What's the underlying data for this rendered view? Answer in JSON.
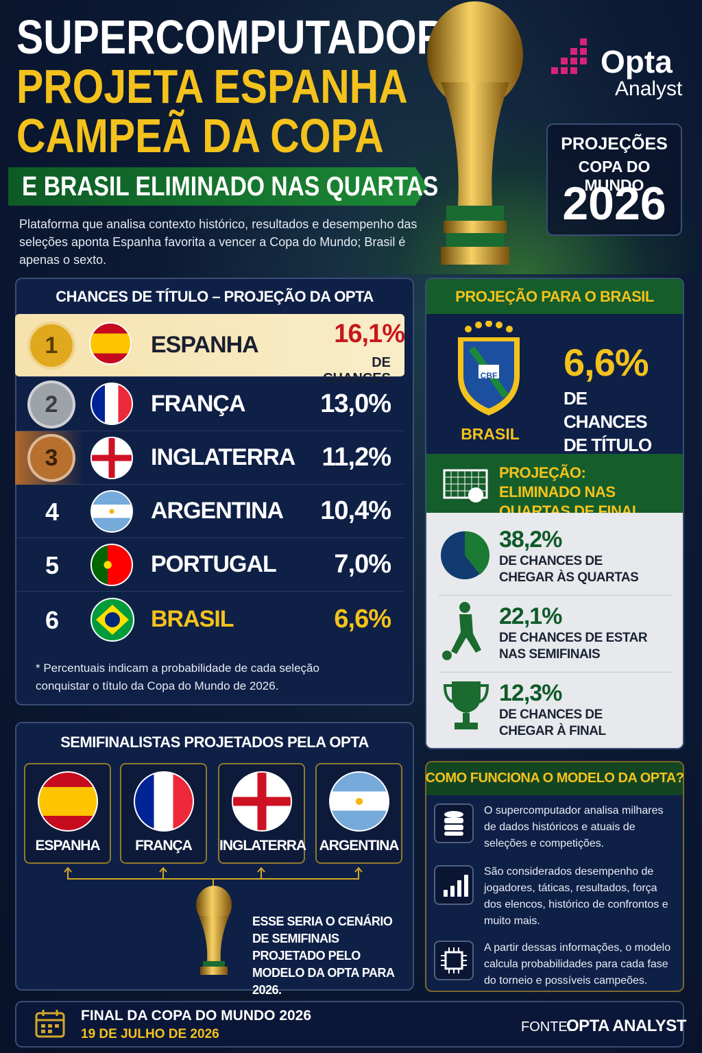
{
  "header": {
    "title_line1": "SUPERCOMPUTADOR",
    "title_line2": "PROJETA ESPANHA",
    "title_line3": "CAMPEÃ DA COPA",
    "banner": "E BRASIL ELIMINADO NAS QUARTAS",
    "intro": "Plataforma que analisa contexto histórico, resultados e desempenho das seleções aponta Espanha favorita a vencer a Copa do Mundo; Brasil é apenas o sexto.",
    "logo_name": "Opta",
    "logo_sub": "Analyst",
    "badge_line1": "PROJEÇÕES",
    "badge_line2": "COPA DO MUNDO",
    "badge_year": "2026"
  },
  "ranking": {
    "title": "CHANCES DE TÍTULO – PROJEÇÃO DA OPTA",
    "rows": [
      {
        "rank": 1,
        "team": "ESPANHA",
        "chance": "16,1%",
        "note": "DE CHANCES"
      },
      {
        "rank": 2,
        "team": "FRANÇA",
        "chance": "13,0%"
      },
      {
        "rank": 3,
        "team": "INGLATERRA",
        "chance": "11,2%"
      },
      {
        "rank": 4,
        "team": "ARGENTINA",
        "chance": "10,4%"
      },
      {
        "rank": 5,
        "team": "PORTUGAL",
        "chance": "7,0%"
      },
      {
        "rank": 6,
        "team": "BRASIL",
        "chance": "6,6%"
      }
    ],
    "footnote": "* Percentuais indicam a probabilidade de cada seleção conquistar o título da Copa do Mundo de 2026."
  },
  "brazil": {
    "title": "PROJEÇÃO PARA O BRASIL",
    "crest": "CBF",
    "name": "BRASIL",
    "chance": "6,6%",
    "chance_label": "DE CHANCES DE TÍTULO",
    "elimination": "PROJEÇÃO: ELIMINADO NAS QUARTAS DE FINAL",
    "stages": [
      {
        "chance": "38,2%",
        "label": "DE CHANCES DE CHEGAR ÀS QUARTAS"
      },
      {
        "chance": "22,1%",
        "label": "DE CHANCES DE ESTAR NAS SEMIFINAIS"
      },
      {
        "chance": "12,3%",
        "label": "DE CHANCES DE CHEGAR À FINAL"
      }
    ]
  },
  "semifinal": {
    "title": "SEMIFINALISTAS PROJETADOS PELA OPTA",
    "teams": [
      "ESPANHA",
      "FRANÇA",
      "INGLATERRA",
      "ARGENTINA"
    ],
    "note": "ESSE SERIA O CENÁRIO DE SEMIFINAIS PROJETADO PELO MODELO DA OPTA PARA 2026."
  },
  "model": {
    "title": "COMO FUNCIONA O MODELO DA OPTA?",
    "steps": [
      "O supercomputador analisa milhares de dados históricos e atuais de seleções e competições.",
      "São considerados desempenho de jogadores, táticas, resultados, força dos elencos, histórico de confrontos e muito mais.",
      "A partir dessas informações, o modelo calcula probabilidades para cada fase do torneio e possíveis campeões."
    ]
  },
  "footer": {
    "event": "FINAL DA COPA DO MUNDO 2026",
    "date": "19 DE JULHO DE 2026",
    "source_label": "FONTE:",
    "source": "OPTA ANALYST"
  }
}
